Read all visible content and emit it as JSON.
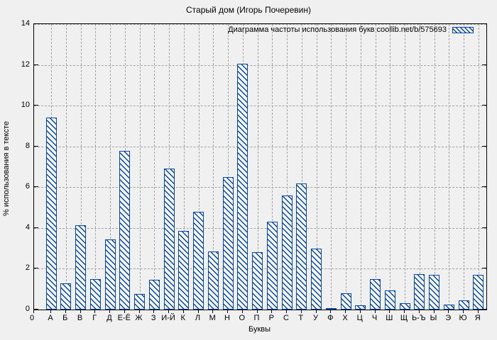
{
  "page": {
    "title": "Старый дом (Игорь Почеревин)",
    "legend_label": "Диаграмма частоты использования букв coollib.net/b/575693",
    "x_axis_label": "Буквы",
    "y_axis_label": "% использования в тексте",
    "origin_x_label": "0"
  },
  "colors": {
    "bar_blue": "#0045a8",
    "background_gray": "#f0f0f0",
    "grid_gray": "#a3a3a3",
    "axis_black": "#000000"
  },
  "chart_data": {
    "type": "bar",
    "title": "Старый дом (Игорь Почеревин)",
    "xlabel": "Буквы",
    "ylabel": "% использования в тексте",
    "legend_entries": [
      "Диаграмма частоты использования букв coollib.net/b/575693"
    ],
    "legend_position": "top-right-inside",
    "legend_swatch": "blue-diagonal-hatch",
    "grid": true,
    "ylim": [
      0,
      14
    ],
    "yticks": [
      0,
      2,
      4,
      6,
      8,
      10,
      12,
      14
    ],
    "bar_style": "hollow-diagonal-hatch",
    "categories": [
      "А",
      "Б",
      "В",
      "Г",
      "Д",
      "Е-Ё",
      "Ж",
      "З",
      "И-Й",
      "К",
      "Л",
      "М",
      "Н",
      "О",
      "П",
      "Р",
      "С",
      "Т",
      "У",
      "Ф",
      "Х",
      "Ц",
      "Ч",
      "Ш",
      "Щ",
      "Ь-Ъ",
      "Ы",
      "Э",
      "Ю",
      "Я"
    ],
    "values": [
      9.4,
      1.3,
      4.15,
      1.5,
      3.45,
      7.8,
      0.75,
      1.45,
      6.9,
      3.85,
      4.8,
      2.85,
      6.5,
      12.05,
      2.8,
      4.3,
      5.6,
      6.2,
      3.0,
      0.05,
      0.8,
      0.2,
      1.5,
      0.95,
      0.3,
      1.75,
      1.7,
      0.25,
      0.45,
      1.7
    ]
  }
}
